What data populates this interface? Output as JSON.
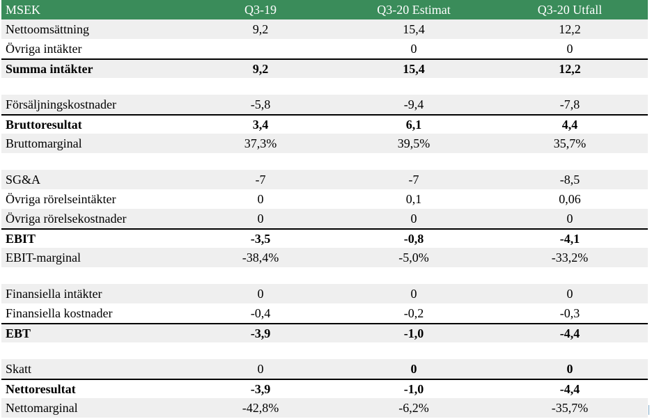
{
  "header": {
    "label": "MSEK",
    "col1": "Q3-19",
    "col2": "Q3-20 Estimat",
    "col3": "Q3-20 Utfall"
  },
  "rows": [
    {
      "label": "Nettoomsättning",
      "v1": "9,2",
      "v2": "15,4",
      "v3": "12,2",
      "style": "shade"
    },
    {
      "label": "Övriga intäkter",
      "v1": "",
      "v2": "0",
      "v3": "0",
      "style": "plain"
    },
    {
      "label": "Summa intäkter",
      "v1": "9,2",
      "v2": "15,4",
      "v3": "12,2",
      "style": "bold-shade"
    },
    {
      "label": "",
      "v1": "",
      "v2": "",
      "v3": "",
      "style": "gap"
    },
    {
      "label": "Försäljningskostnader",
      "v1": "-5,8",
      "v2": "-9,4",
      "v3": "-7,8",
      "style": "shade"
    },
    {
      "label": "Bruttoresultat",
      "v1": "3,4",
      "v2": "6,1",
      "v3": "4,4",
      "style": "bold"
    },
    {
      "label": "Bruttomarginal",
      "v1": "37,3%",
      "v2": "39,5%",
      "v3": "35,7%",
      "style": "shade"
    },
    {
      "label": "",
      "v1": "",
      "v2": "",
      "v3": "",
      "style": "gap"
    },
    {
      "label": "SG&A",
      "v1": "-7",
      "v2": "-7",
      "v3": "-8,5",
      "style": "shade"
    },
    {
      "label": "Övriga rörelseintäkter",
      "v1": "0",
      "v2": "0,1",
      "v3": "0,06",
      "style": "plain"
    },
    {
      "label": "Övriga rörelsekostnader",
      "v1": "0",
      "v2": "0",
      "v3": "0",
      "style": "shade"
    },
    {
      "label": "EBIT",
      "v1": "-3,5",
      "v2": "-0,8",
      "v3": "-4,1",
      "style": "bold"
    },
    {
      "label": "EBIT-marginal",
      "v1": "-38,4%",
      "v2": "-5,0%",
      "v3": "-33,2%",
      "style": "shade"
    },
    {
      "label": "",
      "v1": "",
      "v2": "",
      "v3": "",
      "style": "gap"
    },
    {
      "label": "Finansiella intäkter",
      "v1": "0",
      "v2": "0",
      "v3": "0",
      "style": "shade"
    },
    {
      "label": "Finansiella kostnader",
      "v1": "-0,4",
      "v2": "-0,2",
      "v3": "-0,3",
      "style": "plain"
    },
    {
      "label": "EBT",
      "v1": "-3,9",
      "v2": "-1,0",
      "v3": "-4,4",
      "style": "bold-shade"
    },
    {
      "label": "",
      "v1": "",
      "v2": "",
      "v3": "",
      "style": "gap"
    },
    {
      "label": "Skatt",
      "v1": "0",
      "v2": "0",
      "v3": "0",
      "style": "shade",
      "boldValues": [
        false,
        true,
        true
      ]
    },
    {
      "label": "Nettoresultat",
      "v1": "-3,9",
      "v2": "-1,0",
      "v3": "-4,4",
      "style": "bold"
    },
    {
      "label": "Nettomarginal",
      "v1": "-42,8%",
      "v2": "-6,2%",
      "v3": "-35,7%",
      "style": "shade"
    }
  ],
  "colors": {
    "header_bg": "#3a8c5a",
    "header_text": "#ffffff",
    "row_shade": "#efefef",
    "rule": "#000000"
  }
}
